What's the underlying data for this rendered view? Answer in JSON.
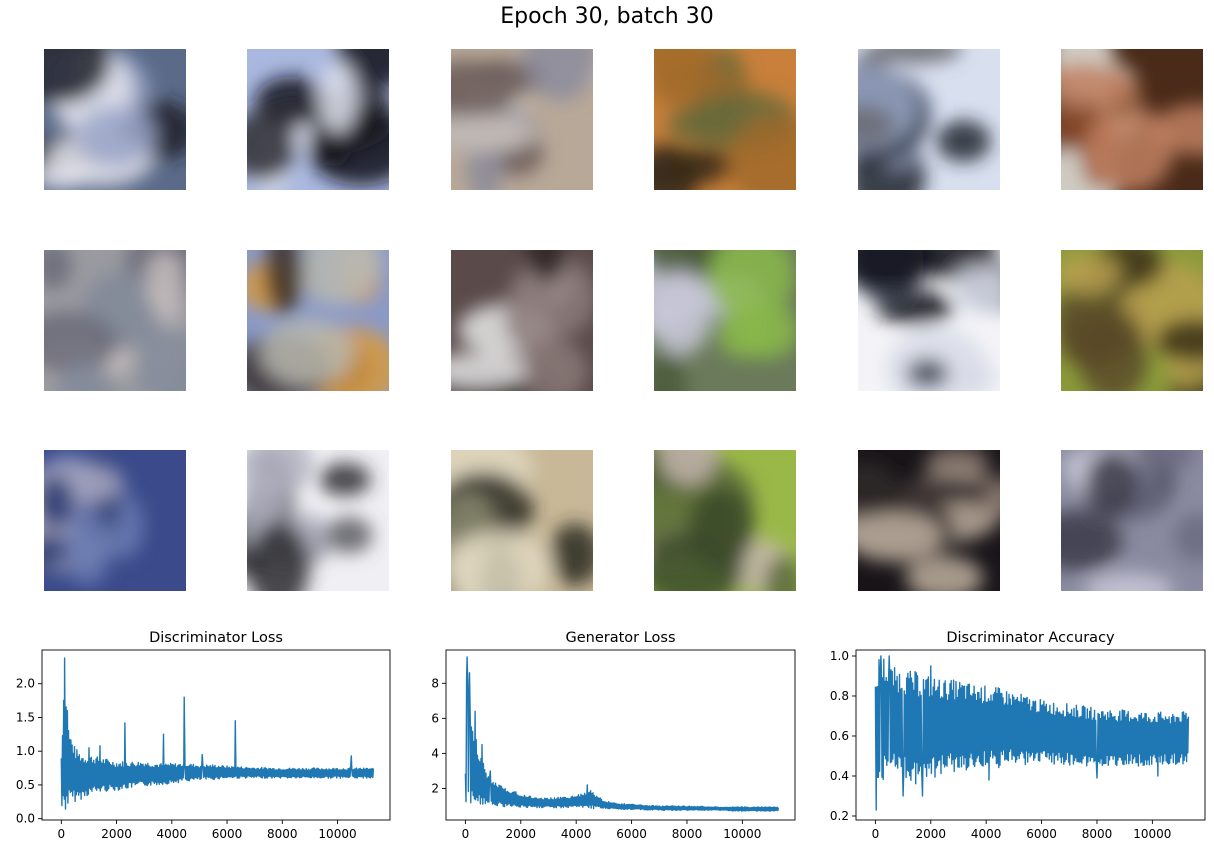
{
  "figure": {
    "title": "Epoch 30, batch 30"
  },
  "samples": {
    "rows": 3,
    "cols": 6,
    "tiles": [
      {
        "name": "sample-1-1",
        "colors": [
          "#5a6a88",
          "#20202a",
          "#e8e8f0",
          "#9aa4c8"
        ]
      },
      {
        "name": "sample-1-2",
        "colors": [
          "#aab8e0",
          "#2a2a30",
          "#101018",
          "#e0e4f0"
        ]
      },
      {
        "name": "sample-1-3",
        "colors": [
          "#b8a898",
          "#6a5a58",
          "#c8c0b8",
          "#8a8a9a"
        ]
      },
      {
        "name": "sample-1-4",
        "colors": [
          "#c8803a",
          "#3a2a1a",
          "#6a6a3a",
          "#a06a2a"
        ]
      },
      {
        "name": "sample-1-5",
        "colors": [
          "#d8e0f0",
          "#202430",
          "#9aa8c8",
          "#6a6a70"
        ]
      },
      {
        "name": "sample-1-6",
        "colors": [
          "#4a2a18",
          "#e8e8e0",
          "#8a4a28",
          "#c08060"
        ]
      },
      {
        "name": "sample-2-1",
        "colors": [
          "#9a9aa0",
          "#6a6a78",
          "#c8c0c0",
          "#808898"
        ]
      },
      {
        "name": "sample-2-2",
        "colors": [
          "#8a9ac8",
          "#d89a40",
          "#3a3028",
          "#b8b8b0"
        ]
      },
      {
        "name": "sample-2-3",
        "colors": [
          "#5a4a4a",
          "#e8e8e8",
          "#2a2020",
          "#8a7a78"
        ]
      },
      {
        "name": "sample-2-4",
        "colors": [
          "#6a7a5a",
          "#c8c8d8",
          "#4a5a3a",
          "#8ab84a"
        ]
      },
      {
        "name": "sample-2-5",
        "colors": [
          "#f4f4f8",
          "#101018",
          "#404858",
          "#d8dce8"
        ]
      },
      {
        "name": "sample-2-6",
        "colors": [
          "#8a9a3a",
          "#5a4a28",
          "#b8a050",
          "#3a3018"
        ]
      },
      {
        "name": "sample-3-1",
        "colors": [
          "#3a4a8a",
          "#a8a8c0",
          "#6a7ab0",
          "#2a3a70"
        ]
      },
      {
        "name": "sample-3-2",
        "colors": [
          "#f0f0f4",
          "#2a2a30",
          "#5a5a60",
          "#b0b0c0"
        ]
      },
      {
        "name": "sample-3-3",
        "colors": [
          "#c8b898",
          "#2a2a20",
          "#8a8a70",
          "#e0d8c0"
        ]
      },
      {
        "name": "sample-3-4",
        "colors": [
          "#9ab848",
          "#c8b8b0",
          "#5a6a3a",
          "#3a4a2a"
        ]
      },
      {
        "name": "sample-3-5",
        "colors": [
          "#181418",
          "#c0b0a0",
          "#8a7a70",
          "#302828"
        ]
      },
      {
        "name": "sample-3-6",
        "colors": [
          "#8a8aa0",
          "#c8c8d8",
          "#3a3a48",
          "#6a6a80"
        ]
      }
    ]
  },
  "chart_data": [
    {
      "type": "line",
      "title": "Discriminator Loss",
      "xlabel": "",
      "ylabel": "",
      "xlim": [
        -700,
        11900
      ],
      "ylim": [
        -0.02,
        2.5
      ],
      "xticks": [
        0,
        2000,
        4000,
        6000,
        8000,
        10000
      ],
      "xtick_labels": [
        "0",
        "2000",
        "4000",
        "6000",
        "8000",
        "10000"
      ],
      "yticks": [
        0.0,
        0.5,
        1.0,
        1.5,
        2.0
      ],
      "ytick_labels": [
        "0.0",
        "0.5",
        "1.0",
        "1.5",
        "2.0"
      ],
      "grid": false,
      "color": "#1f77b4",
      "series": [
        {
          "x": [
            0,
            50,
            120,
            200,
            300,
            500,
            800,
            1000,
            1500,
            2000,
            2500,
            3000,
            3500,
            4000,
            4500,
            5000,
            5500,
            6000,
            7000,
            8000,
            9000,
            10000,
            11300
          ],
          "upper": [
            1.0,
            1.6,
            2.35,
            1.55,
            1.3,
            1.05,
            0.95,
            0.95,
            0.9,
            0.85,
            0.85,
            0.85,
            0.82,
            0.82,
            0.82,
            0.8,
            0.8,
            0.78,
            0.76,
            0.75,
            0.75,
            0.75,
            0.75
          ],
          "lower": [
            0.1,
            0.05,
            0.05,
            0.15,
            0.2,
            0.25,
            0.3,
            0.35,
            0.4,
            0.42,
            0.45,
            0.48,
            0.5,
            0.52,
            0.55,
            0.57,
            0.58,
            0.6,
            0.6,
            0.6,
            0.6,
            0.6,
            0.6
          ],
          "spikes": [
            [
              120,
              2.38
            ],
            [
              220,
              1.6
            ],
            [
              1000,
              1.05
            ],
            [
              1400,
              1.08
            ],
            [
              2300,
              1.42
            ],
            [
              3700,
              1.25
            ],
            [
              4450,
              1.8
            ],
            [
              5100,
              0.95
            ],
            [
              6300,
              1.45
            ],
            [
              10500,
              0.93
            ]
          ]
        }
      ]
    },
    {
      "type": "line",
      "title": "Generator Loss",
      "xlabel": "",
      "ylabel": "",
      "xlim": [
        -700,
        11900
      ],
      "ylim": [
        0.2,
        9.9
      ],
      "xticks": [
        0,
        2000,
        4000,
        6000,
        8000,
        10000
      ],
      "xtick_labels": [
        "0",
        "2000",
        "4000",
        "6000",
        "8000",
        "10000"
      ],
      "yticks": [
        2,
        4,
        6,
        8
      ],
      "ytick_labels": [
        "2",
        "4",
        "6",
        "8"
      ],
      "grid": false,
      "color": "#1f77b4",
      "series": [
        {
          "x": [
            0,
            50,
            100,
            200,
            300,
            500,
            800,
            1000,
            1500,
            2000,
            2500,
            3000,
            3500,
            4000,
            4500,
            5000,
            5500,
            6000,
            7000,
            8000,
            9000,
            10000,
            11300
          ],
          "upper": [
            3.0,
            9.5,
            8.0,
            6.4,
            5.5,
            4.0,
            2.9,
            2.4,
            2.0,
            1.7,
            1.5,
            1.45,
            1.5,
            1.6,
            1.9,
            1.3,
            1.15,
            1.1,
            1.0,
            1.0,
            0.95,
            0.95,
            0.95
          ],
          "lower": [
            0.5,
            0.8,
            1.0,
            1.0,
            1.1,
            1.1,
            1.0,
            1.0,
            0.95,
            0.9,
            0.9,
            0.9,
            0.9,
            0.9,
            0.85,
            0.85,
            0.8,
            0.8,
            0.75,
            0.75,
            0.75,
            0.7,
            0.7
          ],
          "spikes": [
            [
              60,
              9.5
            ],
            [
              150,
              8.6
            ],
            [
              350,
              6.4
            ],
            [
              600,
              4.5
            ],
            [
              900,
              3.0
            ],
            [
              4400,
              2.2
            ]
          ]
        }
      ]
    },
    {
      "type": "line",
      "title": "Discriminator Accuracy",
      "xlabel": "",
      "ylabel": "",
      "xlim": [
        -700,
        11900
      ],
      "ylim": [
        0.18,
        1.03
      ],
      "xticks": [
        0,
        2000,
        4000,
        6000,
        8000,
        10000
      ],
      "xtick_labels": [
        "0",
        "2000",
        "4000",
        "6000",
        "8000",
        "10000"
      ],
      "yticks": [
        0.2,
        0.4,
        0.6,
        0.8,
        1.0
      ],
      "ytick_labels": [
        "0.2",
        "0.4",
        "0.6",
        "0.8",
        "1.0"
      ],
      "grid": false,
      "color": "#1f77b4",
      "series": [
        {
          "x": [
            0,
            100,
            300,
            500,
            1000,
            1500,
            2000,
            2500,
            3000,
            3500,
            4000,
            4500,
            5000,
            5500,
            6000,
            7000,
            8000,
            9000,
            10000,
            11300
          ],
          "upper": [
            0.85,
            1.0,
            1.0,
            0.95,
            0.93,
            0.92,
            0.9,
            0.88,
            0.88,
            0.86,
            0.85,
            0.84,
            0.82,
            0.8,
            0.78,
            0.76,
            0.74,
            0.73,
            0.72,
            0.72
          ],
          "lower": [
            0.4,
            0.3,
            0.38,
            0.4,
            0.38,
            0.35,
            0.38,
            0.42,
            0.42,
            0.42,
            0.44,
            0.44,
            0.46,
            0.45,
            0.46,
            0.45,
            0.45,
            0.45,
            0.45,
            0.46
          ],
          "spikes": [
            [
              30,
              0.23
            ],
            [
              200,
              1.0
            ],
            [
              500,
              1.0
            ],
            [
              1000,
              0.3
            ],
            [
              1700,
              0.3
            ],
            [
              2000,
              0.95
            ],
            [
              4100,
              0.38
            ],
            [
              8000,
              0.39
            ],
            [
              10200,
              0.4
            ]
          ]
        }
      ]
    }
  ]
}
